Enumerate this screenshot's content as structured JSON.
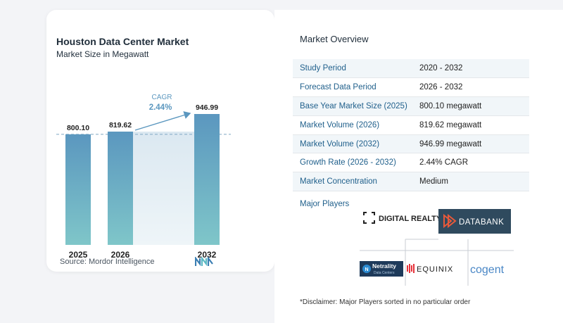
{
  "chart": {
    "title": "Houston Data Center Market",
    "subtitle": "Market Size in Megawatt",
    "source": "Source:  Mordor Intelligence",
    "cagr_label": "CAGR",
    "cagr_value": "2.44%",
    "bar_color": "#5b97bf",
    "bar_color_light": "#7fc6c9"
  },
  "chart_data": {
    "type": "bar",
    "title": "Houston Data Center Market",
    "subtitle": "Market Size in Megawatt",
    "categories": [
      "2025",
      "2026",
      "2032"
    ],
    "values": [
      800.1,
      819.62,
      946.99
    ],
    "value_labels": [
      "800.10",
      "819.62",
      "946.99"
    ],
    "annotation": "CAGR 2.44%",
    "grid": false
  },
  "overview": {
    "title": "Market Overview",
    "rows": [
      {
        "label": "Study Period",
        "value": "2020 - 2032"
      },
      {
        "label": "Forecast Data Period",
        "value": "2026 - 2032"
      },
      {
        "label": "Base Year Market Size (2025)",
        "value": "800.10 megawatt"
      },
      {
        "label": "Market Volume (2026)",
        "value": "819.62 megawatt"
      },
      {
        "label": "Market Volume (2032)",
        "value": "946.99 megawatt"
      },
      {
        "label": "Growth Rate (2026 - 2032)",
        "value": "2.44% CAGR"
      },
      {
        "label": "Market Concentration",
        "value": "Medium"
      }
    ]
  },
  "players": {
    "title": "Major Players",
    "logos": {
      "digital_realty": "DIGITAL REALTY",
      "databank": "DATABANK",
      "netrality": "Netrality",
      "netrality_sub": "Data Centers",
      "equinix": "EQUINIX",
      "cogent": "cogent"
    },
    "disclaimer": "*Disclaimer: Major Players sorted in no particular order"
  }
}
